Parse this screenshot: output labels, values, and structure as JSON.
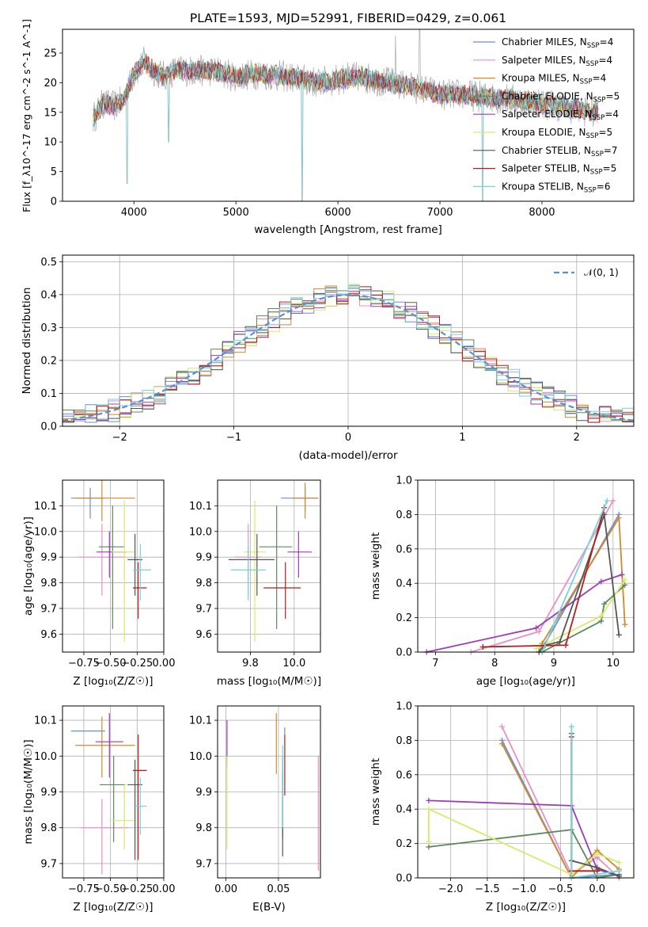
{
  "colors": [
    "#6b8fd6",
    "#e88fc8",
    "#cf8a2f",
    "#5a8a5a",
    "#9b3cb8",
    "#d6eb6a",
    "#555555",
    "#b51c1c",
    "#74d4dc"
  ],
  "spectrum": {
    "title": "PLATE=1593, MJD=52991, FIBERID=0429, z=0.061",
    "xlabel": "wavelength [Angstrom, rest frame]",
    "ylabel": "Flux [f_λ10^-17 erg cm^-2 s^-1 A^-1]",
    "xlim": [
      3300,
      8900
    ],
    "ylim": [
      0,
      29
    ],
    "xticks": [
      4000,
      5000,
      6000,
      7000,
      8000
    ],
    "yticks": [
      0,
      5,
      10,
      15,
      20,
      25
    ],
    "data_color": "#aaaaaa",
    "continuum": [
      [
        3600,
        14
      ],
      [
        3700,
        16.5
      ],
      [
        3800,
        16
      ],
      [
        3900,
        17
      ],
      [
        4000,
        21.5
      ],
      [
        4100,
        23.5
      ],
      [
        4200,
        22
      ],
      [
        4300,
        21
      ],
      [
        4400,
        22
      ],
      [
        4600,
        22
      ],
      [
        4800,
        22
      ],
      [
        5000,
        21
      ],
      [
        5200,
        21.5
      ],
      [
        5500,
        21
      ],
      [
        5800,
        20
      ],
      [
        6000,
        20.5
      ],
      [
        6200,
        21
      ],
      [
        6500,
        20
      ],
      [
        6800,
        19
      ],
      [
        7000,
        18
      ],
      [
        7200,
        18
      ],
      [
        7500,
        17.5
      ],
      [
        7800,
        17
      ],
      [
        8200,
        16
      ],
      [
        8500,
        15
      ]
    ],
    "absorption_dips": [
      [
        3934,
        3
      ],
      [
        4340,
        10
      ],
      [
        5650,
        0
      ],
      [
        7420,
        0
      ]
    ],
    "emission_spikes": [
      [
        6563,
        28
      ],
      [
        6800,
        29
      ]
    ],
    "legend": [
      {
        "label": "Chabrier MILES, N",
        "sub": "SSP",
        "tail": "=4"
      },
      {
        "label": "Salpeter MILES, N",
        "sub": "SSP",
        "tail": "=4"
      },
      {
        "label": "Kroupa MILES, N",
        "sub": "SSP",
        "tail": "=4"
      },
      {
        "label": "Chabrier ELODIE, N",
        "sub": "SSP",
        "tail": "=5"
      },
      {
        "label": "Salpeter ELODIE, N",
        "sub": "SSP",
        "tail": "=4"
      },
      {
        "label": "Kroupa ELODIE, N",
        "sub": "SSP",
        "tail": "=5"
      },
      {
        "label": "Chabrier STELIB, N",
        "sub": "SSP",
        "tail": "=7"
      },
      {
        "label": "Salpeter STELIB, N",
        "sub": "SSP",
        "tail": "=5"
      },
      {
        "label": "Kroupa STELIB, N",
        "sub": "SSP",
        "tail": "=6"
      }
    ]
  },
  "chart_data": [
    {
      "type": "line",
      "title": "PLATE=1593, MJD=52991, FIBERID=0429, z=0.061",
      "xlabel": "wavelength [Angstrom, rest frame]",
      "ylabel": "Flux [f_λ10^-17 erg cm^-2 s^-1 A^-1]",
      "xlim": [
        3300,
        8900
      ],
      "ylim": [
        0,
        29
      ]
    },
    {
      "type": "line",
      "xlabel": "(data-model)/error",
      "ylabel": "Normed distribution",
      "xlim": [
        -2.5,
        2.5
      ],
      "ylim": [
        0,
        0.52
      ],
      "xticks": [
        -2,
        -1,
        0,
        1,
        2
      ],
      "yticks": [
        0.0,
        0.1,
        0.2,
        0.3,
        0.4,
        0.5
      ],
      "legend": "𝒩(0, 1)",
      "gaussian": {
        "mu": 0,
        "sigma": 1,
        "color": "#5a8fd6"
      },
      "hist_bins": [
        -2.5,
        2.5,
        50
      ]
    },
    {
      "type": "scatter",
      "xlabel": "Z [log₁₀(Z/Z☉)]",
      "ylabel": "age  [log₁₀(age/yr)]",
      "xlim": [
        -0.95,
        0.0
      ],
      "ylim": [
        9.53,
        10.2
      ],
      "xticks": [
        -0.75,
        -0.5,
        -0.25,
        0.0
      ],
      "xticklabels": [
        "−0.75",
        "−0.50",
        "−0.25",
        "0.00"
      ],
      "yticks": [
        9.6,
        9.7,
        9.8,
        9.9,
        10.0,
        10.1
      ],
      "points": [
        {
          "series": 0,
          "x": -0.69,
          "xerr": [
            0.18,
            0.13
          ],
          "y": 10.13,
          "yerr": [
            0.08,
            0.04
          ]
        },
        {
          "series": 1,
          "x": -0.58,
          "xerr": [
            0.22,
            0.22
          ],
          "y": 9.9,
          "yerr": [
            0.15,
            0.13
          ]
        },
        {
          "series": 2,
          "x": -0.58,
          "xerr": [
            0.25,
            0.31
          ],
          "y": 10.13,
          "yerr": [
            0.09,
            0.07
          ]
        },
        {
          "series": 3,
          "x": -0.48,
          "xerr": [
            0.13,
            0.11
          ],
          "y": 9.94,
          "yerr": [
            0.32,
            0.16
          ]
        },
        {
          "series": 4,
          "x": -0.51,
          "xerr": [
            0.12,
            0.16
          ],
          "y": 9.92,
          "yerr": [
            0.1,
            0.08
          ]
        },
        {
          "series": 5,
          "x": -0.37,
          "xerr": [
            0.12,
            0.1
          ],
          "y": 9.92,
          "yerr": [
            0.35,
            0.2
          ]
        },
        {
          "series": 6,
          "x": -0.27,
          "xerr": [
            0.07,
            0.07
          ],
          "y": 9.89,
          "yerr": [
            0.14,
            0.1
          ]
        },
        {
          "series": 7,
          "x": -0.24,
          "xerr": [
            0.05,
            0.08
          ],
          "y": 9.78,
          "yerr": [
            0.12,
            0.1
          ]
        },
        {
          "series": 8,
          "x": -0.22,
          "xerr": [
            0.07,
            0.1
          ],
          "y": 9.85,
          "yerr": [
            0.12,
            0.1
          ]
        }
      ]
    },
    {
      "type": "scatter",
      "xlabel": "mass [log₁₀(M/M☉)]",
      "xlim": [
        9.65,
        10.12
      ],
      "ylim": [
        9.53,
        10.2
      ],
      "xticks": [
        9.8,
        10.0
      ],
      "yticks": [
        9.6,
        9.7,
        9.8,
        9.9,
        10.0,
        10.1
      ],
      "points": [
        {
          "series": 0,
          "x": 10.05,
          "xerr": [
            0.11,
            0.06
          ],
          "y": 10.13,
          "yerr": [
            0.05,
            0.04
          ]
        },
        {
          "series": 1,
          "x": 9.79,
          "xerr": [
            0.06,
            0.06
          ],
          "y": 9.9,
          "yerr": [
            0.15,
            0.13
          ]
        },
        {
          "series": 2,
          "x": 10.05,
          "xerr": [
            0.06,
            0.06
          ],
          "y": 10.13,
          "yerr": [
            0.08,
            0.06
          ]
        },
        {
          "series": 3,
          "x": 9.92,
          "xerr": [
            0.08,
            0.07
          ],
          "y": 9.94,
          "yerr": [
            0.32,
            0.16
          ]
        },
        {
          "series": 4,
          "x": 10.02,
          "xerr": [
            0.05,
            0.06
          ],
          "y": 9.92,
          "yerr": [
            0.1,
            0.08
          ]
        },
        {
          "series": 5,
          "x": 9.82,
          "xerr": [
            0.05,
            0.05
          ],
          "y": 9.92,
          "yerr": [
            0.35,
            0.2
          ]
        },
        {
          "series": 6,
          "x": 9.83,
          "xerr": [
            0.13,
            0.08
          ],
          "y": 9.89,
          "yerr": [
            0.14,
            0.1
          ]
        },
        {
          "series": 7,
          "x": 9.96,
          "xerr": [
            0.1,
            0.07
          ],
          "y": 9.78,
          "yerr": [
            0.12,
            0.1
          ]
        },
        {
          "series": 8,
          "x": 9.79,
          "xerr": [
            0.08,
            0.08
          ],
          "y": 9.85,
          "yerr": [
            0.12,
            0.1
          ]
        }
      ]
    },
    {
      "type": "line",
      "xlabel": "age  [log₁₀(age/yr)]",
      "ylabel": "mass weight",
      "xlim": [
        6.7,
        10.35
      ],
      "ylim": [
        0,
        1
      ],
      "xticks": [
        7,
        8,
        9,
        10
      ],
      "yticks": [
        0.0,
        0.2,
        0.4,
        0.6,
        0.8,
        1.0
      ],
      "series": [
        {
          "color": 0,
          "points": [
            [
              8.75,
              0.0
            ],
            [
              8.8,
              0.02
            ],
            [
              10.1,
              0.8
            ]
          ]
        },
        {
          "color": 1,
          "points": [
            [
              7.6,
              0.0
            ],
            [
              8.75,
              0.12
            ],
            [
              10.0,
              0.88
            ]
          ]
        },
        {
          "color": 2,
          "points": [
            [
              8.75,
              0.0
            ],
            [
              8.8,
              0.05
            ],
            [
              10.1,
              0.78
            ],
            [
              10.2,
              0.16
            ]
          ]
        },
        {
          "color": 3,
          "points": [
            [
              8.8,
              0.0
            ],
            [
              9.8,
              0.18
            ],
            [
              9.85,
              0.28
            ],
            [
              10.2,
              0.39
            ]
          ]
        },
        {
          "color": 4,
          "points": [
            [
              6.85,
              0.0
            ],
            [
              8.7,
              0.14
            ],
            [
              9.8,
              0.41
            ],
            [
              10.15,
              0.45
            ]
          ]
        },
        {
          "color": 5,
          "points": [
            [
              8.7,
              0.02
            ],
            [
              9.8,
              0.21
            ],
            [
              10.2,
              0.42
            ]
          ]
        },
        {
          "color": 6,
          "points": [
            [
              8.75,
              0.0
            ],
            [
              8.85,
              0.04
            ],
            [
              9.1,
              0.06
            ],
            [
              9.85,
              0.8
            ],
            [
              10.1,
              0.1
            ]
          ]
        },
        {
          "color": 7,
          "points": [
            [
              7.8,
              0.03
            ],
            [
              9.2,
              0.04
            ],
            [
              9.85,
              0.84
            ]
          ]
        },
        {
          "color": 8,
          "points": [
            [
              8.8,
              0.0
            ],
            [
              9.9,
              0.88
            ]
          ]
        }
      ]
    },
    {
      "type": "scatter",
      "xlabel": "Z [log₁₀(Z/Z☉)]",
      "ylabel": "mass [log₁₀(M/M☉)]",
      "xlim": [
        -0.95,
        0.0
      ],
      "ylim": [
        9.66,
        10.14
      ],
      "xticks": [
        -0.75,
        -0.5,
        -0.25,
        0.0
      ],
      "xticklabels": [
        "−0.75",
        "−0.50",
        "−0.25",
        "0.00"
      ],
      "yticks": [
        9.7,
        9.8,
        9.9,
        10.0,
        10.1
      ],
      "points": [
        {
          "series": 0,
          "x": -0.69,
          "xerr": [
            0.18,
            0.14
          ],
          "y": 10.07,
          "yerr": [
            0.0,
            0.0
          ]
        },
        {
          "series": 1,
          "x": -0.58,
          "xerr": [
            0.2,
            0.25
          ],
          "y": 9.8,
          "yerr": [
            0.13,
            0.08
          ]
        },
        {
          "series": 2,
          "x": -0.58,
          "xerr": [
            0.25,
            0.31
          ],
          "y": 10.03,
          "yerr": [
            0.09,
            0.08
          ]
        },
        {
          "series": 3,
          "x": -0.47,
          "xerr": [
            0.13,
            0.11
          ],
          "y": 9.92,
          "yerr": [
            0.16,
            0.08
          ]
        },
        {
          "series": 4,
          "x": -0.51,
          "xerr": [
            0.13,
            0.13
          ],
          "y": 10.04,
          "yerr": [
            0.1,
            0.08
          ]
        },
        {
          "series": 5,
          "x": -0.37,
          "xerr": [
            0.12,
            0.1
          ],
          "y": 9.82,
          "yerr": [
            0.08,
            0.1
          ]
        },
        {
          "series": 6,
          "x": -0.27,
          "xerr": [
            0.07,
            0.07
          ],
          "y": 9.92,
          "yerr": [
            0.21,
            0.07
          ]
        },
        {
          "series": 7,
          "x": -0.24,
          "xerr": [
            0.05,
            0.08
          ],
          "y": 9.96,
          "yerr": [
            0.25,
            0.1
          ]
        },
        {
          "series": 8,
          "x": -0.22,
          "xerr": [
            0.05,
            0.06
          ],
          "y": 9.86,
          "yerr": [
            0.08,
            0.08
          ]
        }
      ]
    },
    {
      "type": "scatter",
      "xlabel": "E(B-V)",
      "xlim": [
        -0.008,
        0.09
      ],
      "ylim": [
        9.66,
        10.14
      ],
      "xticks": [
        0.0,
        0.05
      ],
      "xticklabels": [
        "0.00",
        "0.05"
      ],
      "yticks": [
        9.7,
        9.8,
        9.9,
        10.0,
        10.1
      ],
      "points": [
        {
          "series": 0,
          "x": 0.056,
          "y": 10.07,
          "yerr": [
            0.01,
            0.01
          ]
        },
        {
          "series": 1,
          "x": 0.088,
          "y": 9.84,
          "yerr": [
            0.16,
            0.16
          ]
        },
        {
          "series": 2,
          "x": 0.048,
          "y": 10.03,
          "yerr": [
            0.08,
            0.09
          ]
        },
        {
          "series": 3,
          "x": 0.054,
          "y": 9.93,
          "yerr": [
            0.16,
            0.07
          ]
        },
        {
          "series": 4,
          "x": 0.001,
          "y": 10.04,
          "yerr": [
            0.07,
            0.06
          ]
        },
        {
          "series": 5,
          "x": 0.001,
          "y": 9.86,
          "yerr": [
            0.12,
            0.14
          ]
        },
        {
          "series": 6,
          "x": 0.054,
          "y": 9.88,
          "yerr": [
            0.16,
            0.08
          ]
        },
        {
          "series": 7,
          "x": 0.056,
          "y": 9.99,
          "yerr": [
            0.1,
            0.07
          ]
        },
        {
          "series": 8,
          "x": 0.054,
          "y": 9.95,
          "yerr": [
            0.15,
            0.08
          ]
        }
      ]
    },
    {
      "type": "line",
      "xlabel": "Z [log₁₀(Z/Z☉)]",
      "ylabel": "mass weight",
      "xlim": [
        -2.45,
        0.5
      ],
      "ylim": [
        0,
        1
      ],
      "xticks": [
        -2.0,
        -1.5,
        -1.0,
        -0.5,
        0.0
      ],
      "xticklabels": [
        "−2.0",
        "−1.5",
        "−1.0",
        "−0.5",
        "0.0"
      ],
      "yticks": [
        0.0,
        0.2,
        0.4,
        0.6,
        0.8,
        1.0
      ],
      "series": [
        {
          "color": 0,
          "points": [
            [
              -1.3,
              0.8
            ],
            [
              -0.35,
              0.0
            ],
            [
              0.3,
              0.02
            ]
          ]
        },
        {
          "color": 1,
          "points": [
            [
              -1.3,
              0.88
            ],
            [
              -0.35,
              0.02
            ],
            [
              0.0,
              0.12
            ],
            [
              0.3,
              0.0
            ]
          ]
        },
        {
          "color": 2,
          "points": [
            [
              -1.3,
              0.78
            ],
            [
              -0.35,
              0.0
            ],
            [
              0.0,
              0.16
            ],
            [
              0.3,
              0.05
            ]
          ]
        },
        {
          "color": 3,
          "points": [
            [
              -2.3,
              0.18
            ],
            [
              -0.35,
              0.28
            ],
            [
              0.0,
              0.0
            ],
            [
              0.3,
              0.02
            ]
          ]
        },
        {
          "color": 4,
          "points": [
            [
              -2.3,
              0.45
            ],
            [
              -0.35,
              0.42
            ],
            [
              0.0,
              0.05
            ],
            [
              0.3,
              0.01
            ]
          ]
        },
        {
          "color": 5,
          "points": [
            [
              -2.3,
              0.21
            ],
            [
              -2.3,
              0.4
            ],
            [
              -0.35,
              0.02
            ],
            [
              0.0,
              0.14
            ],
            [
              0.3,
              0.09
            ]
          ]
        },
        {
          "color": 6,
          "points": [
            [
              -0.35,
              0.84
            ],
            [
              -0.35,
              0.1
            ],
            [
              0.0,
              0.06
            ],
            [
              0.3,
              0.01
            ]
          ]
        },
        {
          "color": 7,
          "points": [
            [
              -0.35,
              0.82
            ],
            [
              -0.35,
              0.04
            ],
            [
              0.0,
              0.04
            ]
          ]
        },
        {
          "color": 8,
          "points": [
            [
              -0.35,
              0.88
            ],
            [
              -0.35,
              0.0
            ],
            [
              0.3,
              0.04
            ]
          ]
        }
      ]
    }
  ]
}
